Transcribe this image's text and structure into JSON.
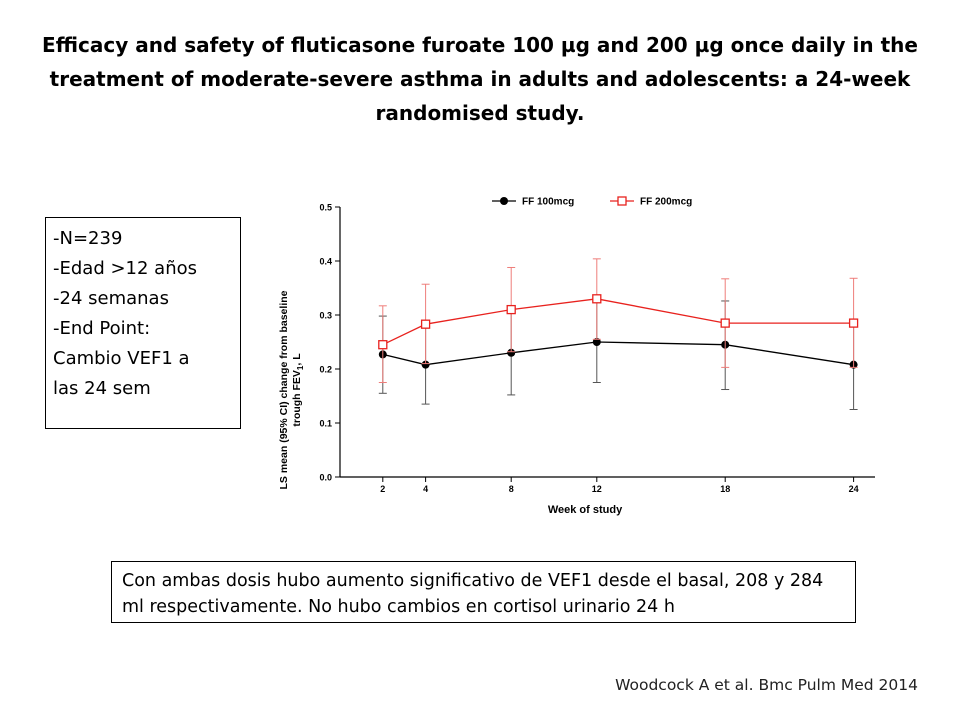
{
  "slide": {
    "title": "Efficacy and safety of fluticasone furoate 100 µg and 200 µg once daily in the treatment of moderate-severe asthma in adults and adolescents: a 24-week randomised study.",
    "info_lines": [
      "-N=239",
      "-Edad >12 años",
      "-24 semanas",
      "-End Point:",
      "Cambio VEF1 a",
      "las 24 sem"
    ],
    "summary": "Con ambas dosis hubo aumento significativo de VEF1 desde el basal, 208 y 284 ml respectivamente. No hubo cambios en cortisol urinario 24 h",
    "citation": "Woodcock A et al. Bmc Pulm Med 2014"
  },
  "chart_data": {
    "type": "line",
    "title": "",
    "xlabel": "Week of study",
    "ylabel_line1": "LS mean (95% CI) change from baseline",
    "ylabel_line2": "trough FEV",
    "ylabel_sub": "1",
    "ylabel_tail": ", L",
    "x": [
      2,
      4,
      8,
      12,
      18,
      24
    ],
    "x_tick_labels": [
      "2",
      "4",
      "8",
      "12",
      "18",
      "24"
    ],
    "y_tick_labels": [
      "0.0",
      "0.1",
      "0.2",
      "0.3",
      "0.4",
      "0.5"
    ],
    "y_ticks": [
      0,
      0.1,
      0.2,
      0.3,
      0.4,
      0.5
    ],
    "ylim": [
      0,
      0.5
    ],
    "xlim": [
      0,
      25
    ],
    "grid": false,
    "legend_position": "top",
    "series": [
      {
        "name": "FF 100mcg",
        "color": "#000000",
        "marker": "filled-circle",
        "values": [
          0.227,
          0.208,
          0.23,
          0.25,
          0.245,
          0.208
        ],
        "ci_low": [
          0.155,
          0.135,
          0.152,
          0.175,
          0.162,
          0.125
        ],
        "ci_high": [
          0.298,
          0.282,
          0.31,
          0.325,
          0.326,
          0.289
        ]
      },
      {
        "name": "FF 200mcg",
        "color": "#e8221e",
        "marker": "open-square",
        "values": [
          0.245,
          0.283,
          0.31,
          0.33,
          0.285,
          0.285
        ],
        "ci_low": [
          0.175,
          0.21,
          0.232,
          0.255,
          0.203,
          0.203
        ],
        "ci_high": [
          0.317,
          0.357,
          0.388,
          0.404,
          0.367,
          0.368
        ]
      }
    ]
  }
}
